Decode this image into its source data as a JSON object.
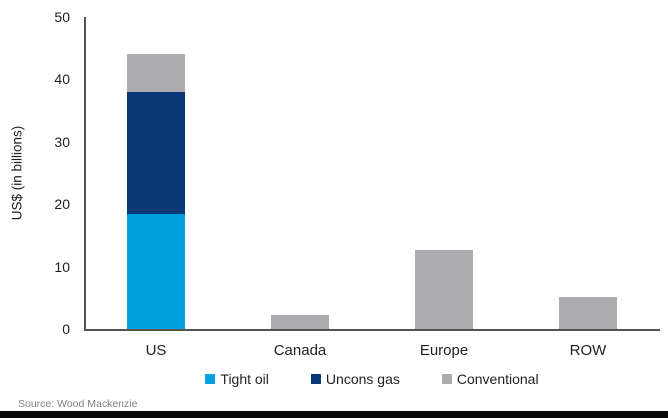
{
  "chart_data": {
    "type": "bar",
    "stacked": true,
    "title": "",
    "xlabel": "",
    "ylabel": "US$ (in billions)",
    "ylim": [
      0,
      50
    ],
    "yticks": [
      0,
      10,
      20,
      30,
      40,
      50
    ],
    "grid": false,
    "legend_position": "bottom",
    "categories": [
      "US",
      "Canada",
      "Europe",
      "ROW"
    ],
    "series": [
      {
        "name": "Tight oil",
        "color": "#00A1E0",
        "values": [
          18.5,
          0,
          0,
          0
        ]
      },
      {
        "name": "Uncons gas",
        "color": "#0B3877",
        "values": [
          19.5,
          0,
          0,
          0
        ]
      },
      {
        "name": "Conventional",
        "color": "#ACACB0",
        "values": [
          6.0,
          2.3,
          12.6,
          5.2
        ]
      }
    ],
    "totals": [
      44,
      2.3,
      12.6,
      5.2
    ]
  },
  "source": "Source: Wood Mackenzie",
  "colors": {
    "axis": "#545454",
    "text": "#1f1f1f",
    "source_text": "#7f7f7f",
    "footer_bar": "#0a0a0a",
    "background": "#ffffff"
  }
}
